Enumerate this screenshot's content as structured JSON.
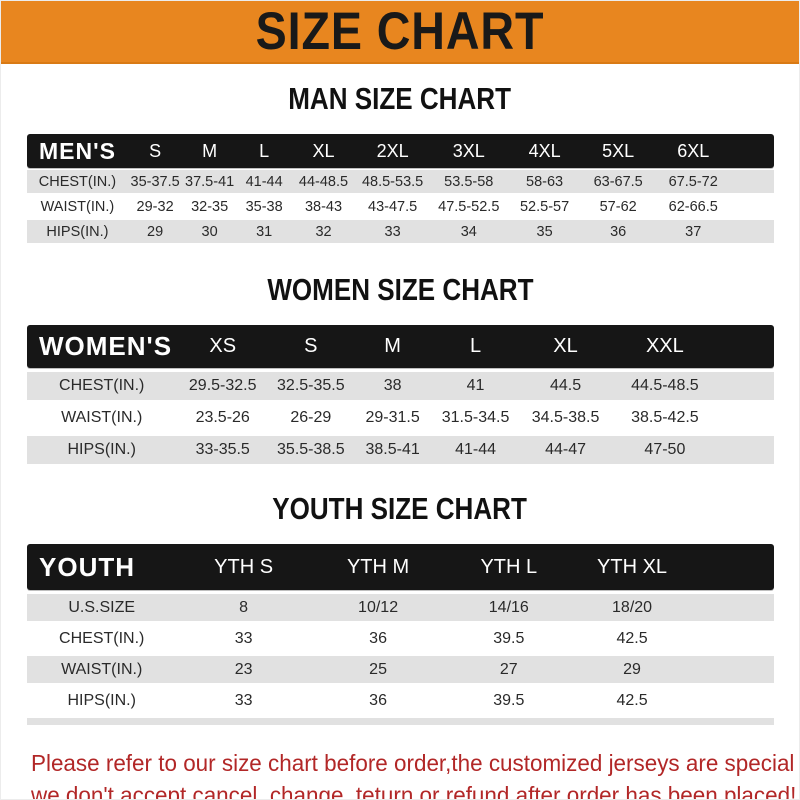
{
  "banner": {
    "title": "SIZE CHART"
  },
  "sections": [
    {
      "title": "MAN SIZE CHART",
      "corner_label": "MEN'S",
      "columns": [
        "S",
        "M",
        "L",
        "XL",
        "2XL",
        "3XL",
        "4XL",
        "5XL",
        "6XL"
      ],
      "rows": [
        {
          "label": "CHEST(IN.)",
          "values": [
            "35-37.5",
            "37.5-41",
            "41-44",
            "44-48.5",
            "48.5-53.5",
            "53.5-58",
            "58-63",
            "63-67.5",
            "67.5-72"
          ]
        },
        {
          "label": "WAIST(IN.)",
          "values": [
            "29-32",
            "32-35",
            "35-38",
            "38-43",
            "43-47.5",
            "47.5-52.5",
            "52.5-57",
            "57-62",
            "62-66.5"
          ]
        },
        {
          "label": "HIPS(IN.)",
          "values": [
            "29",
            "30",
            "31",
            "32",
            "33",
            "34",
            "35",
            "36",
            "37"
          ]
        }
      ]
    },
    {
      "title": "WOMEN SIZE CHART",
      "corner_label": "WOMEN'S",
      "columns": [
        "XS",
        "S",
        "M",
        "L",
        "XL",
        "XXL"
      ],
      "rows": [
        {
          "label": "CHEST(IN.)",
          "values": [
            "29.5-32.5",
            "32.5-35.5",
            "38",
            "41",
            "44.5",
            "44.5-48.5"
          ]
        },
        {
          "label": "WAIST(IN.)",
          "values": [
            "23.5-26",
            "26-29",
            "29-31.5",
            "31.5-34.5",
            "34.5-38.5",
            "38.5-42.5"
          ]
        },
        {
          "label": "HIPS(IN.)",
          "values": [
            "33-35.5",
            "35.5-38.5",
            "38.5-41",
            "41-44",
            "44-47",
            "47-50"
          ]
        }
      ]
    },
    {
      "title": "YOUTH SIZE CHART",
      "corner_label": "YOUTH",
      "columns": [
        "YTH S",
        "YTH M",
        "YTH L",
        "YTH XL"
      ],
      "rows": [
        {
          "label": "U.S.SIZE",
          "values": [
            "8",
            "10/12",
            "14/16",
            "18/20"
          ]
        },
        {
          "label": "CHEST(IN.)",
          "values": [
            "33",
            "36",
            "39.5",
            "42.5"
          ]
        },
        {
          "label": "WAIST(IN.)",
          "values": [
            "23",
            "25",
            "27",
            "29"
          ]
        },
        {
          "label": "HIPS(IN.)",
          "values": [
            "33",
            "36",
            "39.5",
            "42.5"
          ]
        }
      ]
    }
  ],
  "footer": {
    "line1": "Please refer to our size chart before order,the customized jerseys are special products,",
    "line2": "we don't accept cancel, change, teturn or refund after order has been placed!"
  },
  "colors": {
    "banner_bg": "#E8861F",
    "header_bar_bg": "#161616",
    "row_alt_bg": "#E1E1E1",
    "footer_text": "#B22727"
  }
}
